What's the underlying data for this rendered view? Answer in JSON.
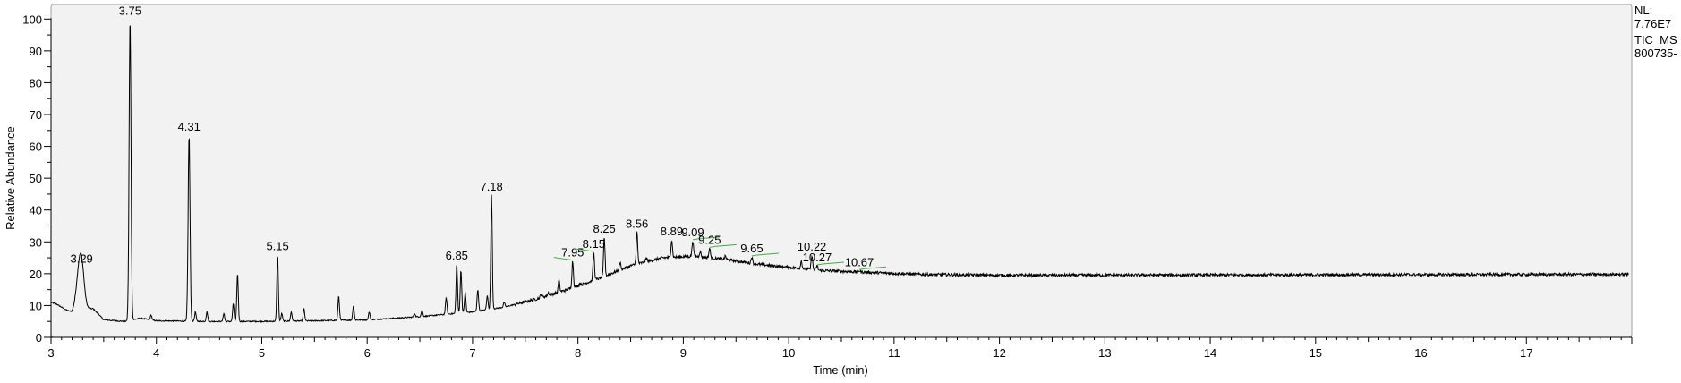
{
  "chart_data": {
    "type": "line",
    "title": "",
    "xlabel": "Time (min)",
    "ylabel": "Relative Abundance",
    "xlim": [
      3,
      18
    ],
    "ylim": [
      0,
      100
    ],
    "x_ticks": [
      3,
      4,
      5,
      6,
      7,
      8,
      9,
      10,
      11,
      12,
      13,
      14,
      15,
      16,
      17
    ],
    "y_ticks": [
      0,
      10,
      20,
      30,
      40,
      50,
      60,
      70,
      80,
      90,
      100
    ],
    "grid": false,
    "colors": {
      "trace": "#000000",
      "plot_bg": "#f2f2f2",
      "annotation_line": "#3cb043",
      "frame": "#a0a0a0"
    },
    "baseline": [
      [
        3.0,
        11
      ],
      [
        3.05,
        10.5
      ],
      [
        3.15,
        8.5
      ],
      [
        3.2,
        8
      ],
      [
        3.23,
        9
      ],
      [
        3.4,
        9
      ],
      [
        3.5,
        5.5
      ],
      [
        3.7,
        5
      ],
      [
        3.85,
        6
      ],
      [
        4.0,
        5.2
      ],
      [
        4.5,
        5
      ],
      [
        5.0,
        5
      ],
      [
        5.5,
        5.2
      ],
      [
        6.0,
        5.5
      ],
      [
        6.5,
        6.5
      ],
      [
        7.0,
        8
      ],
      [
        7.3,
        9.5
      ],
      [
        7.6,
        12
      ],
      [
        7.9,
        15
      ],
      [
        8.2,
        18.5
      ],
      [
        8.5,
        22.5
      ],
      [
        8.8,
        25
      ],
      [
        9.1,
        25.5
      ],
      [
        9.4,
        24.5
      ],
      [
        9.7,
        23
      ],
      [
        10.0,
        22
      ],
      [
        10.3,
        21
      ],
      [
        10.7,
        20.5
      ],
      [
        11.2,
        19.8
      ],
      [
        12,
        19.5
      ],
      [
        18,
        19.8
      ]
    ],
    "peaks": [
      {
        "rt": 3.29,
        "abundance": 22,
        "label": "3.29"
      },
      {
        "rt": 3.75,
        "abundance": 100,
        "label": "3.75"
      },
      {
        "rt": 4.31,
        "abundance": 63.5,
        "label": "4.31"
      },
      {
        "rt": 5.15,
        "abundance": 26,
        "label": "5.15"
      },
      {
        "rt": 6.85,
        "abundance": 23,
        "label": "6.85"
      },
      {
        "rt": 7.18,
        "abundance": 44.7,
        "label": "7.18"
      },
      {
        "rt": 7.95,
        "abundance": 24,
        "label": "7.95",
        "mark": "left"
      },
      {
        "rt": 8.15,
        "abundance": 26.7,
        "label": "8.15",
        "mark": "left"
      },
      {
        "rt": 8.25,
        "abundance": 31.5,
        "label": "8.25"
      },
      {
        "rt": 8.56,
        "abundance": 33,
        "label": "8.56"
      },
      {
        "rt": 8.89,
        "abundance": 30.6,
        "label": "8.89"
      },
      {
        "rt": 9.09,
        "abundance": 30.4,
        "label": "9.09",
        "mark": "right"
      },
      {
        "rt": 9.25,
        "abundance": 28,
        "label": "9.25",
        "mark": "right"
      },
      {
        "rt": 9.65,
        "abundance": 25.3,
        "label": "9.65",
        "mark": "right"
      },
      {
        "rt": 10.22,
        "abundance": 25.8,
        "label": "10.22"
      },
      {
        "rt": 10.27,
        "abundance": 22.5,
        "label": "10.27",
        "mark": "right"
      },
      {
        "rt": 10.67,
        "abundance": 21,
        "label": "10.67",
        "mark": "right"
      },
      {
        "rt": 3.26,
        "abundance": 16.5
      },
      {
        "rt": 3.45,
        "abundance": 7.5
      },
      {
        "rt": 3.95,
        "abundance": 7
      },
      {
        "rt": 4.37,
        "abundance": 8
      },
      {
        "rt": 4.48,
        "abundance": 8
      },
      {
        "rt": 4.64,
        "abundance": 7.5
      },
      {
        "rt": 4.73,
        "abundance": 10.5
      },
      {
        "rt": 4.77,
        "abundance": 20
      },
      {
        "rt": 5.19,
        "abundance": 7.5
      },
      {
        "rt": 5.28,
        "abundance": 8
      },
      {
        "rt": 5.4,
        "abundance": 9
      },
      {
        "rt": 5.73,
        "abundance": 13
      },
      {
        "rt": 5.87,
        "abundance": 10
      },
      {
        "rt": 6.02,
        "abundance": 8
      },
      {
        "rt": 6.45,
        "abundance": 7.5
      },
      {
        "rt": 6.52,
        "abundance": 8.5
      },
      {
        "rt": 6.75,
        "abundance": 12.5
      },
      {
        "rt": 6.89,
        "abundance": 21
      },
      {
        "rt": 6.93,
        "abundance": 14
      },
      {
        "rt": 7.05,
        "abundance": 15
      },
      {
        "rt": 7.14,
        "abundance": 13
      },
      {
        "rt": 7.3,
        "abundance": 11
      },
      {
        "rt": 7.65,
        "abundance": 13.5
      },
      {
        "rt": 7.72,
        "abundance": 14
      },
      {
        "rt": 7.82,
        "abundance": 18
      },
      {
        "rt": 8.02,
        "abundance": 17
      },
      {
        "rt": 8.4,
        "abundance": 23.5
      },
      {
        "rt": 8.65,
        "abundance": 25
      },
      {
        "rt": 9.16,
        "abundance": 27
      },
      {
        "rt": 9.4,
        "abundance": 25.5
      },
      {
        "rt": 10.12,
        "abundance": 24
      }
    ]
  },
  "side_info": {
    "nl_label": "NL:",
    "nl_value": "7.76E7",
    "scan_filter": "TIC  MS",
    "file_name": "800735-"
  }
}
